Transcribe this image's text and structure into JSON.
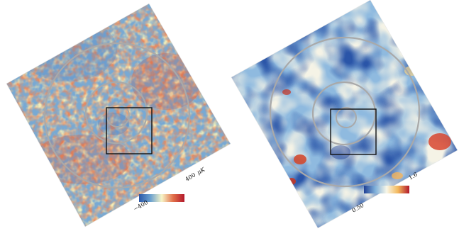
{
  "left_map": {
    "colorbar_min_label": "−400",
    "colorbar_max_label": "400",
    "colorbar_unit": "μK",
    "colormap": [
      "#2b57a8",
      "#6aa0cf",
      "#f7f5c8",
      "#e2704a",
      "#b2182b"
    ]
  },
  "right_map": {
    "colorbar_min_label": "0.50",
    "colorbar_max_label": "1.6",
    "colormap": [
      "#1f3f94",
      "#7fb0da",
      "#f8f7e8",
      "#f3b85c",
      "#b2182b"
    ]
  },
  "overlay": {
    "ring_color": "#a9a9a9",
    "box_color": "#111111"
  }
}
